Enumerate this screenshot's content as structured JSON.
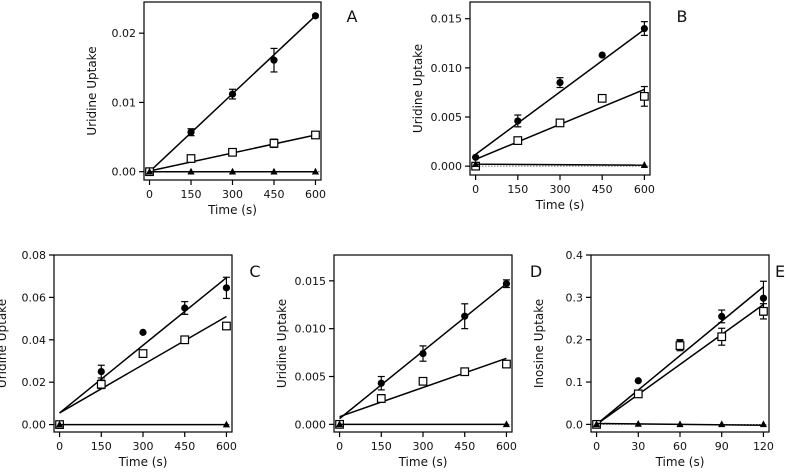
{
  "chart_data": [
    {
      "type": "scatter",
      "panel_label": "A",
      "xlabel": "Time (s)",
      "ylabel": "Uridine Uptake",
      "xlim": [
        -20,
        620
      ],
      "ylim": [
        -0.0012,
        0.0245
      ],
      "xticks": [
        0,
        150,
        300,
        450,
        600
      ],
      "xtick_labels": [
        "0",
        "150",
        "300",
        "450",
        "600"
      ],
      "yticks": [
        0.0,
        0.01,
        0.02
      ],
      "ytick_labels": [
        "0.00",
        "0.01",
        "0.02"
      ],
      "series": [
        {
          "name": "circles",
          "marker": "circle",
          "x": [
            0,
            150,
            300,
            450,
            600
          ],
          "y": [
            0.0,
            0.0057,
            0.0112,
            0.0161,
            0.0225
          ],
          "err": [
            0.0002,
            0.0005,
            0.0007,
            0.0017,
            0.0003
          ],
          "fit": [
            0.0,
            0.0225
          ]
        },
        {
          "name": "squares",
          "marker": "square",
          "x": [
            0,
            150,
            300,
            450,
            600
          ],
          "y": [
            0.0,
            0.0019,
            0.0028,
            0.0041,
            0.0053
          ],
          "err": [
            0.0001,
            0.0002,
            0.0003,
            0.0006,
            0.0003
          ],
          "fit": [
            0.0001,
            0.0053
          ]
        },
        {
          "name": "triangles",
          "marker": "triangle",
          "x": [
            0,
            150,
            300,
            450,
            600
          ],
          "y": [
            0.0,
            0.0,
            0.0,
            0.0,
            0.0
          ],
          "err": [
            0,
            0,
            0,
            0,
            0
          ],
          "fit": [
            0.0,
            0.0
          ]
        }
      ]
    },
    {
      "type": "scatter",
      "panel_label": "B",
      "xlabel": "Time (s)",
      "ylabel": "Uridine Uptake",
      "xlim": [
        -20,
        620
      ],
      "ylim": [
        -0.0009,
        0.0167
      ],
      "xticks": [
        0,
        150,
        300,
        450,
        600
      ],
      "xtick_labels": [
        "0",
        "150",
        "300",
        "450",
        "600"
      ],
      "yticks": [
        0.0,
        0.005,
        0.01,
        0.015
      ],
      "ytick_labels": [
        "0.000",
        "0.005",
        "0.010",
        "0.015"
      ],
      "series": [
        {
          "name": "circles",
          "marker": "circle",
          "x": [
            0,
            150,
            300,
            450,
            600
          ],
          "y": [
            0.0009,
            0.0046,
            0.0085,
            0.0113,
            0.014
          ],
          "err": [
            0.0002,
            0.0006,
            0.0005,
            0.0002,
            0.0007
          ],
          "fit": [
            0.0012,
            0.0139
          ]
        },
        {
          "name": "squares",
          "marker": "square",
          "x": [
            0,
            150,
            300,
            450,
            600
          ],
          "y": [
            0.0,
            0.0026,
            0.0044,
            0.0069,
            0.0071
          ],
          "err": [
            0.0001,
            0.0002,
            0.0003,
            0.0002,
            0.001
          ],
          "fit": [
            0.0007,
            0.0078
          ]
        },
        {
          "name": "triangles",
          "marker": "triangle",
          "x": [
            0,
            600
          ],
          "y": [
            0.0002,
            0.0001
          ],
          "err": [
            0,
            0
          ],
          "fit": [
            0.0002,
            0.0001
          ]
        }
      ]
    },
    {
      "type": "scatter",
      "panel_label": "C",
      "xlabel": "Time (s)",
      "ylabel": "Uridine Uptake",
      "xlim": [
        -20,
        620
      ],
      "ylim": [
        -0.0035,
        0.08
      ],
      "xticks": [
        0,
        150,
        300,
        450,
        600
      ],
      "xtick_labels": [
        "0",
        "150",
        "300",
        "450",
        "600"
      ],
      "yticks": [
        0.0,
        0.02,
        0.04,
        0.06,
        0.08
      ],
      "ytick_labels": [
        "0.00",
        "0.02",
        "0.04",
        "0.06",
        "0.08"
      ],
      "series": [
        {
          "name": "circles",
          "marker": "circle",
          "x": [
            0,
            150,
            300,
            450,
            600
          ],
          "y": [
            0.0,
            0.025,
            0.0435,
            0.055,
            0.0645
          ],
          "err": [
            0.0005,
            0.003,
            0.0005,
            0.003,
            0.005
          ],
          "fit": [
            0.0055,
            0.0693
          ]
        },
        {
          "name": "squares",
          "marker": "square",
          "x": [
            0,
            150,
            300,
            450,
            600
          ],
          "y": [
            0.0,
            0.019,
            0.0335,
            0.04,
            0.0465
          ],
          "err": [
            0.0005,
            0.002,
            0.0015,
            0.001,
            0.001
          ],
          "fit": [
            0.0055,
            0.051
          ]
        },
        {
          "name": "triangles",
          "marker": "triangle",
          "x": [
            0,
            600
          ],
          "y": [
            0.0,
            0.0
          ],
          "err": [
            0,
            0
          ],
          "fit": [
            0.0,
            0.0
          ]
        }
      ]
    },
    {
      "type": "scatter",
      "panel_label": "D",
      "xlabel": "Time (s)",
      "ylabel": "Uridine Uptake",
      "xlim": [
        -20,
        620
      ],
      "ylim": [
        -0.0008,
        0.0177
      ],
      "xticks": [
        0,
        150,
        300,
        450,
        600
      ],
      "xtick_labels": [
        "0",
        "150",
        "300",
        "450",
        "600"
      ],
      "yticks": [
        0.0,
        0.005,
        0.01,
        0.015
      ],
      "ytick_labels": [
        "0.000",
        "0.005",
        "0.010",
        "0.015"
      ],
      "series": [
        {
          "name": "circles",
          "marker": "circle",
          "x": [
            0,
            150,
            300,
            450,
            600
          ],
          "y": [
            0.0,
            0.0043,
            0.0074,
            0.0113,
            0.0147
          ],
          "err": [
            0.0002,
            0.0007,
            0.0008,
            0.0013,
            0.0004
          ],
          "fit": [
            0.0006,
            0.0147
          ]
        },
        {
          "name": "squares",
          "marker": "square",
          "x": [
            0,
            150,
            300,
            450,
            600
          ],
          "y": [
            0.0,
            0.0027,
            0.0045,
            0.0055,
            0.0063
          ],
          "err": [
            0.0001,
            0.0004,
            0.0003,
            0.0002,
            0.0002
          ],
          "fit": [
            0.0008,
            0.0069
          ]
        },
        {
          "name": "triangles",
          "marker": "triangle",
          "x": [
            0,
            600
          ],
          "y": [
            0.0,
            0.0
          ],
          "err": [
            0,
            0
          ],
          "fit": [
            0.0,
            0.0
          ]
        }
      ]
    },
    {
      "type": "scatter",
      "panel_label": "E",
      "xlabel": "Time (s)",
      "ylabel": "Inosine Uptake",
      "xlim": [
        -4,
        124
      ],
      "ylim": [
        -0.018,
        0.4
      ],
      "xticks": [
        0,
        30,
        60,
        90,
        120
      ],
      "xtick_labels": [
        "0",
        "30",
        "60",
        "90",
        "120"
      ],
      "yticks": [
        0.0,
        0.1,
        0.2,
        0.3,
        0.4
      ],
      "ytick_labels": [
        "0.0",
        "0.1",
        "0.2",
        "0.3",
        "0.4"
      ],
      "series": [
        {
          "name": "circles",
          "marker": "circle",
          "x": [
            0,
            30,
            60,
            90,
            120
          ],
          "y": [
            0.0,
            0.103,
            0.19,
            0.255,
            0.298
          ],
          "err": [
            0.003,
            0.003,
            0.01,
            0.015,
            0.04
          ],
          "fit": [
            0.0,
            0.325
          ]
        },
        {
          "name": "squares",
          "marker": "square",
          "x": [
            0,
            30,
            60,
            90,
            120
          ],
          "y": [
            0.0,
            0.072,
            0.186,
            0.207,
            0.267
          ],
          "err": [
            0.002,
            0.005,
            0.012,
            0.02,
            0.018
          ],
          "fit": [
            0.0,
            0.283
          ]
        },
        {
          "name": "triangles",
          "marker": "triangle",
          "x": [
            0,
            30,
            60,
            90,
            120
          ],
          "y": [
            0.0,
            0.001,
            0.0,
            0.0,
            0.0
          ],
          "err": [
            0,
            0,
            0,
            0,
            0
          ],
          "fit": [
            0.002,
            -0.002
          ]
        }
      ]
    }
  ]
}
